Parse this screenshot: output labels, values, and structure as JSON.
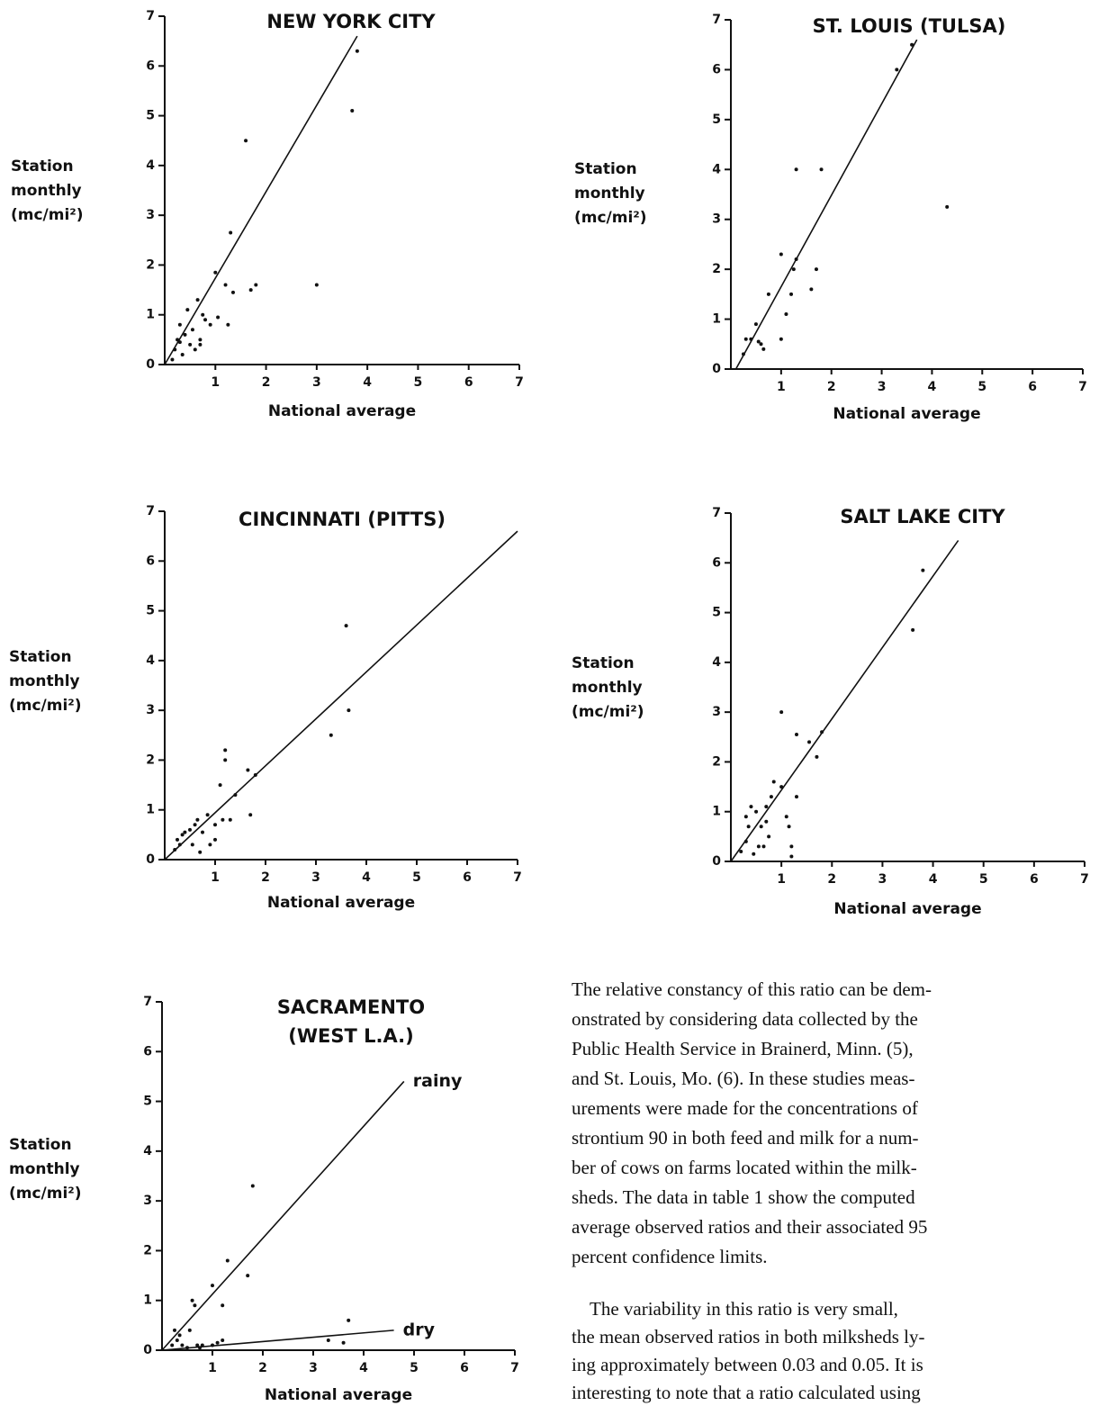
{
  "chart_data": [
    {
      "type": "scatter",
      "title": "NEW YORK CITY",
      "ylabel": [
        "Station",
        "monthly",
        "(mc/mi²)"
      ],
      "xlabel": "National average",
      "xlim": [
        0,
        7
      ],
      "ylim": [
        0,
        7
      ],
      "xticks": [
        1,
        2,
        3,
        4,
        5,
        6,
        7
      ],
      "yticks": [
        0,
        1,
        2,
        3,
        4,
        5,
        6,
        7
      ],
      "x": [
        0.15,
        0.2,
        0.25,
        0.3,
        0.35,
        0.4,
        0.45,
        0.5,
        0.55,
        0.6,
        0.65,
        0.7,
        0.75,
        0.8,
        0.9,
        1.0,
        1.05,
        1.2,
        1.25,
        1.3,
        1.35,
        1.6,
        1.7,
        1.8,
        3.0,
        3.7,
        3.8,
        0.7,
        0.3
      ],
      "y": [
        0.1,
        0.3,
        0.5,
        0.8,
        0.2,
        0.6,
        1.1,
        0.4,
        0.7,
        0.3,
        1.3,
        0.5,
        1.0,
        0.9,
        0.8,
        1.85,
        0.95,
        1.6,
        0.8,
        2.65,
        1.45,
        4.5,
        1.5,
        1.6,
        1.6,
        5.1,
        6.3,
        0.4,
        0.45
      ],
      "lines": [
        {
          "x": [
            0,
            3.8
          ],
          "y": [
            0,
            6.6
          ]
        }
      ]
    },
    {
      "type": "scatter",
      "title": "ST. LOUIS (TULSA)",
      "ylabel": [
        "Station",
        "monthly",
        "(mc/mi²)"
      ],
      "xlabel": "National average",
      "xlim": [
        0,
        7
      ],
      "ylim": [
        0,
        7
      ],
      "xticks": [
        1,
        2,
        3,
        4,
        5,
        6,
        7
      ],
      "yticks": [
        0,
        1,
        2,
        3,
        4,
        5,
        6,
        7
      ],
      "x": [
        0.25,
        0.3,
        0.4,
        0.5,
        0.6,
        0.65,
        0.55,
        0.75,
        1.0,
        1.0,
        1.1,
        1.2,
        1.25,
        1.3,
        1.3,
        1.6,
        1.7,
        1.8,
        3.3,
        3.6,
        4.3
      ],
      "y": [
        0.3,
        0.6,
        0.6,
        0.9,
        0.5,
        0.4,
        0.55,
        1.5,
        0.6,
        2.3,
        1.1,
        1.5,
        2.0,
        2.2,
        4.0,
        1.6,
        2.0,
        4.0,
        6.0,
        6.5,
        3.25
      ],
      "lines": [
        {
          "x": [
            0.1,
            3.7
          ],
          "y": [
            0,
            6.6
          ]
        }
      ]
    },
    {
      "type": "scatter",
      "title": "CINCINNATI (PITTS)",
      "ylabel": [
        "Station",
        "monthly",
        "(mc/mi²)"
      ],
      "xlabel": "National average",
      "xlim": [
        0,
        7
      ],
      "ylim": [
        0,
        7
      ],
      "xticks": [
        1,
        2,
        3,
        4,
        5,
        6,
        7
      ],
      "yticks": [
        0,
        1,
        2,
        3,
        4,
        5,
        6,
        7
      ],
      "x": [
        0.2,
        0.25,
        0.3,
        0.35,
        0.4,
        0.5,
        0.55,
        0.6,
        0.65,
        0.7,
        0.75,
        0.85,
        0.9,
        1.0,
        1.0,
        1.1,
        1.15,
        1.2,
        1.2,
        1.3,
        1.4,
        1.65,
        1.7,
        1.8,
        3.3,
        3.6,
        3.65
      ],
      "y": [
        0.2,
        0.4,
        0.3,
        0.5,
        0.55,
        0.6,
        0.3,
        0.7,
        0.8,
        0.15,
        0.55,
        0.9,
        0.3,
        0.7,
        0.4,
        1.5,
        0.8,
        2.2,
        2.0,
        0.8,
        1.3,
        1.8,
        0.9,
        1.7,
        2.5,
        4.7,
        3.0
      ],
      "lines": [
        {
          "x": [
            0,
            7
          ],
          "y": [
            0,
            6.6
          ]
        }
      ]
    },
    {
      "type": "scatter",
      "title": "SALT LAKE CITY",
      "ylabel": [
        "Station",
        "monthly",
        "(mc/mi²)"
      ],
      "xlabel": "National average",
      "xlim": [
        0,
        7
      ],
      "ylim": [
        0,
        7
      ],
      "xticks": [
        1,
        2,
        3,
        4,
        5,
        6,
        7
      ],
      "yticks": [
        0,
        1,
        2,
        3,
        4,
        5,
        6,
        7
      ],
      "x": [
        0.2,
        0.3,
        0.3,
        0.35,
        0.4,
        0.45,
        0.5,
        0.55,
        0.6,
        0.65,
        0.7,
        0.7,
        0.75,
        0.8,
        0.85,
        1.0,
        1.0,
        1.1,
        1.15,
        1.2,
        1.2,
        1.3,
        1.3,
        1.55,
        1.7,
        1.8,
        3.6,
        3.8
      ],
      "y": [
        0.2,
        0.4,
        0.9,
        0.7,
        1.1,
        0.15,
        1.0,
        0.3,
        0.7,
        0.3,
        1.1,
        0.8,
        0.5,
        1.3,
        1.6,
        1.5,
        3.0,
        0.9,
        0.7,
        0.3,
        0.1,
        2.55,
        1.3,
        2.4,
        2.1,
        2.6,
        4.65,
        5.85
      ],
      "lines": [
        {
          "x": [
            0,
            4.5
          ],
          "y": [
            0,
            6.45
          ]
        }
      ]
    },
    {
      "type": "scatter",
      "title": "SACRAMENTO",
      "subtitle": "(WEST L.A.)",
      "ylabel": [
        "Station",
        "monthly",
        "(mc/mi²)"
      ],
      "xlabel": "National average",
      "xlim": [
        0,
        7
      ],
      "ylim": [
        0,
        7
      ],
      "xticks": [
        1,
        2,
        3,
        4,
        5,
        6,
        7
      ],
      "yticks": [
        0,
        1,
        2,
        3,
        4,
        5,
        6,
        7
      ],
      "x": [
        0.2,
        0.25,
        0.3,
        0.35,
        0.4,
        0.5,
        0.6,
        0.65,
        0.7,
        0.75,
        0.8,
        1.0,
        1.0,
        1.2,
        1.2,
        1.3,
        1.7,
        1.8,
        3.3,
        3.6,
        3.7,
        0.55,
        1.1
      ],
      "y": [
        0.1,
        0.4,
        0.2,
        0.3,
        0.1,
        0.05,
        1.0,
        0.9,
        0.1,
        0.05,
        0.1,
        1.3,
        0.1,
        0.9,
        0.2,
        1.8,
        1.5,
        3.3,
        0.2,
        0.15,
        0.6,
        0.4,
        0.15
      ],
      "lines": [
        {
          "label": "rainy",
          "x": [
            0,
            4.8
          ],
          "y": [
            0,
            5.4
          ]
        },
        {
          "label": "dry",
          "x": [
            0,
            4.6
          ],
          "y": [
            0,
            0.4
          ]
        }
      ]
    }
  ],
  "text": {
    "paragraphs": [
      [
        "The relative constancy of this ratio can be dem-",
        "onstrated by considering data collected by the",
        "Public Health Service in Brainerd, Minn. (5),",
        "and St. Louis, Mo. (6).  In these studies meas-",
        "urements were made for the concentrations of",
        "strontium 90 in both feed and milk for a num-",
        "ber of cows on farms located within the milk-",
        "sheds.  The data in table 1 show the computed",
        "average observed ratios and their associated 95",
        "percent confidence limits."
      ],
      [
        "The variability in this ratio is very small,",
        "the mean observed ratios in both milksheds ly-",
        "ing approximately between 0.03 and 0.05.  It is",
        "interesting to note that a ratio calculated using"
      ]
    ]
  }
}
